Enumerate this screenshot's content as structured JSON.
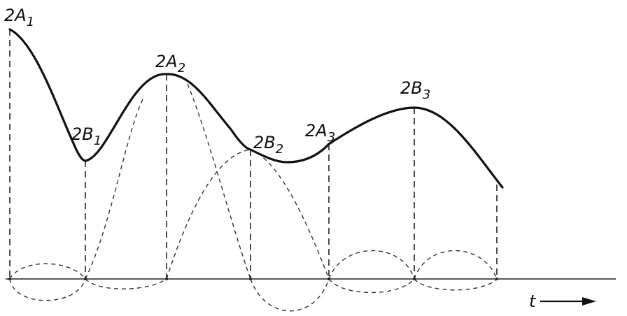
{
  "points": [
    {
      "id": "A1",
      "base": "2A",
      "index": "1"
    },
    {
      "id": "B1",
      "base": "2B",
      "index": "1"
    },
    {
      "id": "A2",
      "base": "2A",
      "index": "2"
    },
    {
      "id": "B2",
      "base": "2B",
      "index": "2"
    },
    {
      "id": "A3",
      "base": "2A",
      "index": "3"
    },
    {
      "id": "B3",
      "base": "2B",
      "index": "3"
    }
  ],
  "time_axis": {
    "label": "t",
    "arrow": "long-right-arrow"
  }
}
